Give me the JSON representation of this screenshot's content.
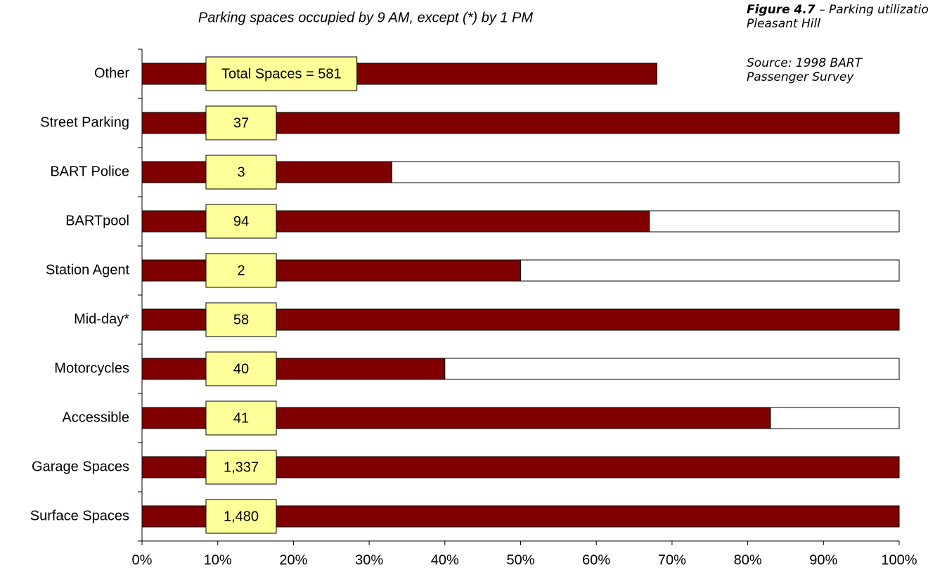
{
  "chart_data": {
    "type": "stacked_barh",
    "title": "Parking spaces occupied by 9 AM, except (*) by 1 PM",
    "figure_number": "Figure 4.7",
    "figure_caption": "– Parking utilization at Pleasant Hill",
    "source": "Source: 1998 BART Passenger Survey",
    "categories": [
      "Other",
      "Street Parking",
      "BART Police",
      "BARTpool",
      "Station Agent",
      "Mid-day*",
      "Motorcycles",
      "Accessible",
      "Garage Spaces",
      "Surface Spaces"
    ],
    "series": [
      {
        "color": "#800000",
        "values": [
          68,
          100,
          33,
          67,
          50,
          100,
          40,
          83,
          100,
          100
        ]
      },
      {
        "color": "#ffffff",
        "values": [
          null,
          0,
          67,
          33,
          50,
          0,
          60,
          17,
          0,
          0
        ]
      }
    ],
    "space_labels": [
      "Total Spaces = 581",
      "37",
      "3",
      "94",
      "2",
      "58",
      "40",
      "41",
      "1,337",
      "1,480"
    ],
    "label_color": "#ffff99",
    "xlim": [
      0,
      100
    ],
    "xticks": [
      {
        "value": 0,
        "label": "0%"
      },
      {
        "value": 10,
        "label": "10%"
      },
      {
        "value": 20,
        "label": "20%"
      },
      {
        "value": 30,
        "label": "30%"
      },
      {
        "value": 40,
        "label": "40%"
      },
      {
        "value": 50,
        "label": "50%"
      },
      {
        "value": 60,
        "label": "60%"
      },
      {
        "value": 70,
        "label": "70%"
      },
      {
        "value": 80,
        "label": "80%"
      },
      {
        "value": 90,
        "label": "90%"
      },
      {
        "value": 100,
        "label": "100%"
      }
    ]
  }
}
